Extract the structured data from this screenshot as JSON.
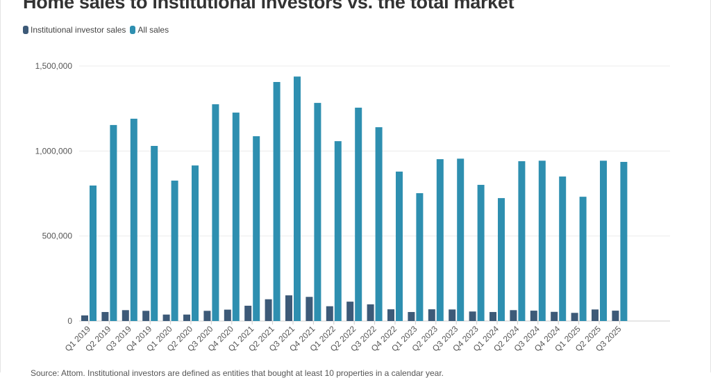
{
  "chart_data": {
    "type": "bar",
    "title": "Home sales to institutional investors vs. the total market",
    "xlabel": "",
    "ylabel": "",
    "ylim": [
      0,
      1500000
    ],
    "yticks": [
      0,
      500000,
      1000000,
      1500000
    ],
    "ytick_labels": [
      "0",
      "500,000",
      "1,000,000",
      "1,500,000"
    ],
    "grid": true,
    "legend_position": "top-left",
    "categories": [
      "Q1 2019",
      "Q2 2019",
      "Q3 2019",
      "Q4 2019",
      "Q1 2020",
      "Q2 2020",
      "Q3 2020",
      "Q4 2020",
      "Q1 2021",
      "Q2 2021",
      "Q3 2021",
      "Q4 2021",
      "Q1 2022",
      "Q2 2022",
      "Q3 2022",
      "Q4 2022",
      "Q1 2023",
      "Q2 2023",
      "Q3 2023",
      "Q4 2023",
      "Q1 2024",
      "Q2 2024",
      "Q3 2024",
      "Q4 2024",
      "Q1 2025",
      "Q2 2025",
      "Q3 2025"
    ],
    "series": [
      {
        "name": "Institutional investor sales",
        "color": "#3d5a78",
        "values": [
          33000,
          53000,
          64000,
          60000,
          38000,
          38000,
          60000,
          67000,
          90000,
          128000,
          151000,
          142000,
          87000,
          114000,
          98000,
          69000,
          53000,
          69000,
          68000,
          56000,
          53000,
          64000,
          61000,
          54000,
          48000,
          68000,
          61000
        ]
      },
      {
        "name": "All sales",
        "color": "#2e8fb0",
        "values": [
          797000,
          1153000,
          1190000,
          1030000,
          826000,
          915000,
          1275000,
          1226000,
          1087000,
          1406000,
          1438000,
          1283000,
          1058000,
          1255000,
          1140000,
          879000,
          752000,
          952000,
          955000,
          801000,
          723000,
          940000,
          943000,
          850000,
          731000,
          943000,
          936000
        ]
      }
    ]
  },
  "source_note": "Source: Attom. Institutional investors are defined as entities that bought at least 10 properties in a calendar year."
}
